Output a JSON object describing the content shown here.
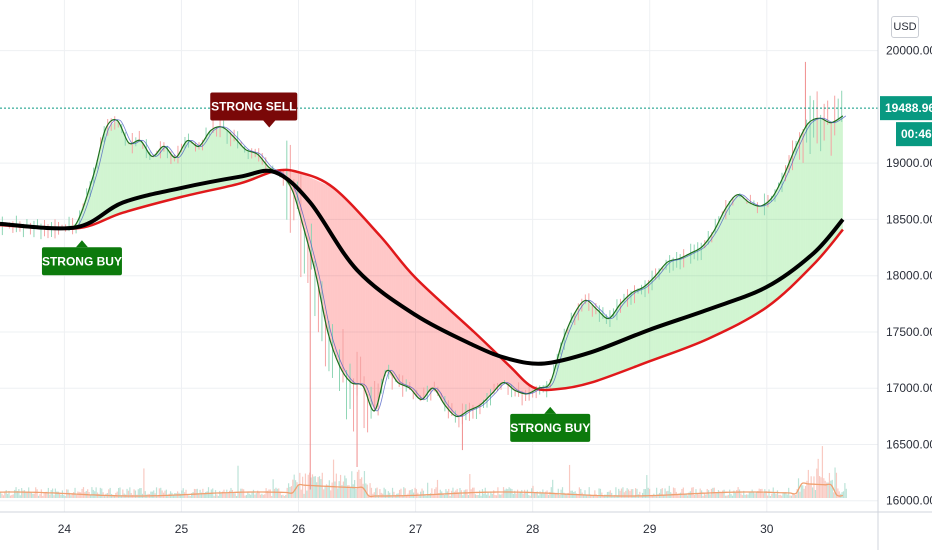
{
  "currency_button": "USD",
  "price_label": "19488.96",
  "countdown_label": "00:46",
  "signals": [
    {
      "label": "STRONG BUY",
      "day": 24.15,
      "price": 18430,
      "kind": "buy"
    },
    {
      "label": "STRONG SELL",
      "day": 25.75,
      "price": 18970,
      "kind": "sell"
    },
    {
      "label": "STRONG BUY",
      "day": 28.15,
      "price": 16950,
      "kind": "buy"
    }
  ],
  "colors": {
    "price_line": "#089981",
    "slow_ma": "#e0191b",
    "mid_ma": "#000000",
    "fast_ma": "#1d6f1d",
    "bull_fill": "#00c800",
    "bear_fill": "#ff0000",
    "buy_badge": "#0c7a0c",
    "sell_badge": "#7a0808",
    "volume": "#f0a070"
  },
  "chart_data": {
    "type": "line",
    "x_axis": {
      "ticks": [
        "24",
        "25",
        "26",
        "27",
        "28",
        "29",
        "30"
      ],
      "range_days": [
        23.45,
        30.95
      ]
    },
    "y_axis": {
      "ticks": [
        "16000.00",
        "16500.00",
        "17000.00",
        "17500.00",
        "18000.00",
        "18500.00",
        "19000.00",
        "20000.00"
      ],
      "range": [
        15900,
        20450
      ],
      "position": "right"
    },
    "last_price": 19488.96,
    "grid": true,
    "series": [
      {
        "role": "fast",
        "x": [
          23.45,
          23.7,
          23.95,
          24.1,
          24.25,
          24.35,
          24.45,
          24.55,
          24.65,
          24.75,
          24.85,
          24.95,
          25.05,
          25.15,
          25.25,
          25.35,
          25.45,
          25.55,
          25.65,
          25.75,
          25.85,
          25.95,
          26.05,
          26.15,
          26.25,
          26.35,
          26.45,
          26.55,
          26.65,
          26.75,
          26.85,
          26.95,
          27.05,
          27.15,
          27.25,
          27.35,
          27.45,
          27.55,
          27.65,
          27.75,
          27.85,
          27.95,
          28.05,
          28.15,
          28.25,
          28.35,
          28.45,
          28.55,
          28.65,
          28.75,
          28.85,
          28.95,
          29.05,
          29.15,
          29.25,
          29.35,
          29.45,
          29.55,
          29.65,
          29.75,
          29.85,
          29.95,
          30.05,
          30.15,
          30.25,
          30.35,
          30.45,
          30.55,
          30.65
        ],
        "values": [
          18470,
          18430,
          18420,
          18460,
          18900,
          19300,
          19380,
          19180,
          19200,
          19060,
          19150,
          19050,
          19200,
          19150,
          19290,
          19320,
          19230,
          19120,
          19080,
          18960,
          18900,
          18750,
          18400,
          18000,
          17500,
          17200,
          17050,
          17020,
          16800,
          17150,
          17050,
          17000,
          16900,
          17000,
          16850,
          16750,
          16800,
          16850,
          16950,
          17050,
          16980,
          16950,
          17000,
          17050,
          17400,
          17650,
          17780,
          17700,
          17620,
          17750,
          17850,
          17900,
          18000,
          18120,
          18150,
          18200,
          18260,
          18400,
          18600,
          18720,
          18650,
          18620,
          18700,
          18900,
          19150,
          19350,
          19400,
          19360,
          19420
        ]
      },
      {
        "role": "mid",
        "x": [
          23.45,
          24.1,
          24.5,
          25.0,
          25.5,
          25.8,
          26.1,
          26.5,
          27.0,
          27.5,
          27.8,
          28.1,
          28.5,
          29.0,
          29.5,
          30.0,
          30.4,
          30.65
        ],
        "values": [
          18460,
          18430,
          18650,
          18780,
          18880,
          18920,
          18650,
          18050,
          17650,
          17380,
          17260,
          17220,
          17320,
          17520,
          17700,
          17900,
          18200,
          18500
        ]
      },
      {
        "role": "slow",
        "x": [
          23.45,
          24.1,
          24.5,
          25.0,
          25.5,
          25.8,
          26.0,
          26.3,
          26.7,
          27.0,
          27.5,
          27.8,
          28.0,
          28.2,
          28.5,
          29.0,
          29.5,
          30.0,
          30.4,
          30.65
        ],
        "values": [
          18450,
          18420,
          18560,
          18700,
          18820,
          18930,
          18920,
          18780,
          18350,
          17980,
          17500,
          17200,
          17010,
          16990,
          17050,
          17240,
          17440,
          17720,
          18100,
          18410
        ]
      }
    ]
  }
}
